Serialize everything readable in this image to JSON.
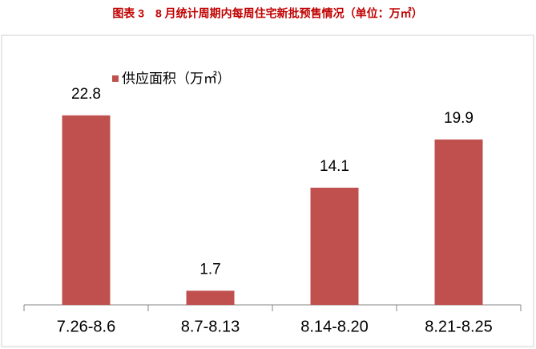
{
  "chart_data": {
    "type": "bar",
    "title": "图表 3　8 月统计周期内每周住宅新批预售情况（单位：万㎡）",
    "categories": [
      "7.26-8.6",
      "8.7-8.13",
      "8.14-8.20",
      "8.21-8.25"
    ],
    "series": [
      {
        "name": "供应面积（万㎡）",
        "color": "#c0504d",
        "values": [
          22.8,
          1.7,
          14.1,
          19.9
        ]
      }
    ],
    "ylim": [
      0,
      25
    ]
  }
}
